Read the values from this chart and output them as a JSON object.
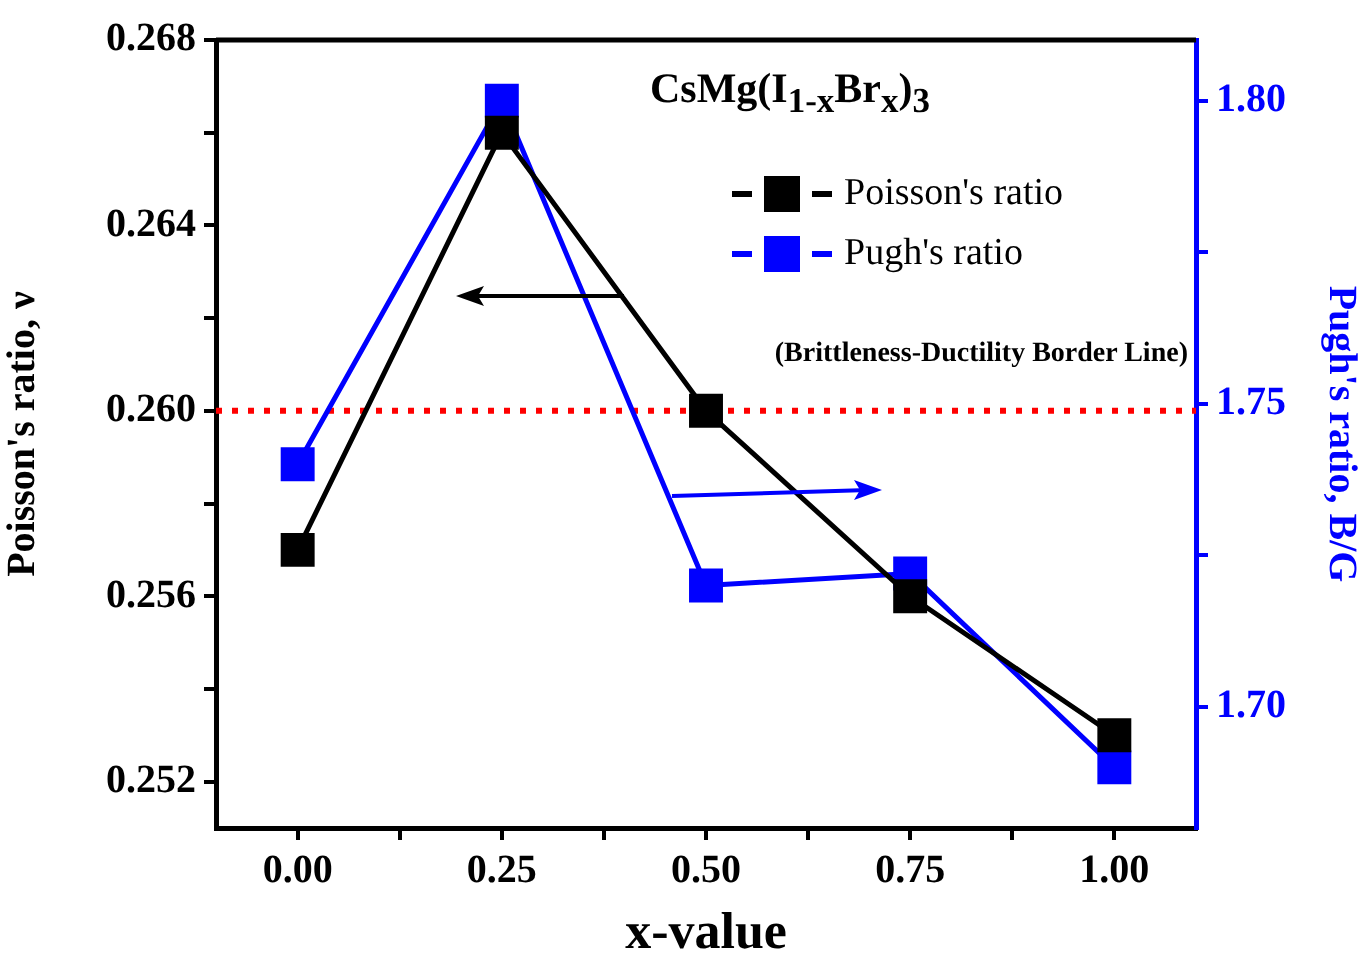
{
  "chart_data": {
    "type": "line",
    "title": "CsMg(I$_{1-x}$Br$_{x}$)$_{3}$",
    "xlabel": "x-value",
    "ylabel": "Poisson's ratio, ν",
    "y2label": "Pugh's ratio, B/G",
    "x": [
      0,
      0.25,
      0.5,
      0.75,
      1
    ],
    "series": [
      {
        "name": "Poisson's ratio",
        "color": "#000000",
        "values": [
          0.257,
          0.266,
          0.26,
          0.256,
          0.253
        ]
      },
      {
        "name": "Pugh's ratio",
        "color": "#0000ff",
        "axis": "y2",
        "values": [
          1.74,
          1.8,
          1.72,
          1.722,
          1.69
        ]
      }
    ],
    "xlim": [
      -0.1,
      1.1
    ],
    "xticks": [
      {
        "value": 0,
        "label": "0.00"
      },
      {
        "value": 0.125,
        "label": null
      },
      {
        "value": 0.25,
        "label": "0.25"
      },
      {
        "value": 0.375,
        "label": null
      },
      {
        "value": 0.5,
        "label": "0.50"
      },
      {
        "value": 0.625,
        "label": null
      },
      {
        "value": 0.75,
        "label": "0.75"
      },
      {
        "value": 0.875,
        "label": null
      },
      {
        "value": 1,
        "label": "1.00"
      }
    ],
    "ylim": [
      0.251,
      0.268
    ],
    "yticks": [
      0.252,
      {
        "value": 0.254,
        "label": null
      },
      0.256,
      {
        "value": 0.258,
        "label": null
      },
      {
        "value": 0.26,
        "label": "0.260"
      },
      {
        "value": 0.262,
        "label": null
      },
      0.264,
      {
        "value": 0.266,
        "label": null
      },
      0.268
    ],
    "y2lim": [
      1.68,
      1.81
    ],
    "y2ticks": [
      {
        "value": 1.7,
        "label": "1.70"
      },
      {
        "value": 1.725,
        "label": null
      },
      1.75,
      {
        "value": 1.775,
        "label": null
      },
      {
        "value": 1.8,
        "label": "1.80"
      }
    ],
    "ref_lines": [
      {
        "axis": "y",
        "value": 0.26,
        "label": "(Brittleness-Ductility Border Line)",
        "color": "#ff0000",
        "line_style": "dotted"
      }
    ],
    "legend": "top right",
    "marker": "square",
    "line_style": "solid"
  }
}
